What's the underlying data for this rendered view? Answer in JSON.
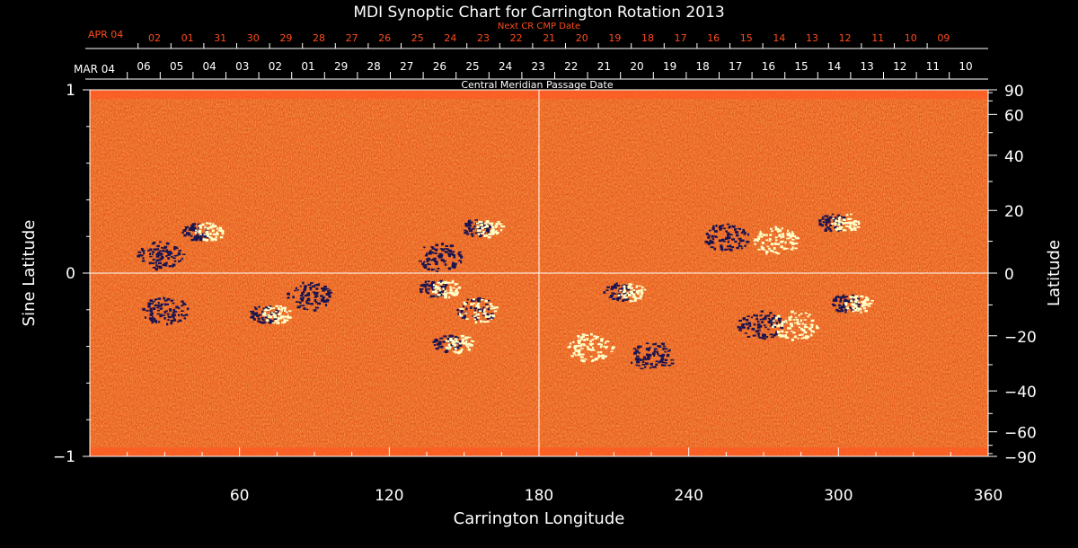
{
  "chart_data": {
    "type": "heatmap",
    "title": "MDI Synoptic Chart for Carrington Rotation 2013",
    "xlabel": "Carrington Longitude",
    "ylabel_left": "Sine Latitude",
    "ylabel_right": "Latitude",
    "xlim": [
      0,
      360
    ],
    "ylim": [
      -1,
      1
    ],
    "x_ticks": [
      60,
      120,
      180,
      240,
      300,
      360
    ],
    "x_tick_labels": [
      "60",
      "120",
      "180",
      "240",
      "300",
      "360"
    ],
    "y_left_ticks": [
      1,
      0,
      -1
    ],
    "y_left_tick_labels": [
      "1",
      "0",
      "−1"
    ],
    "y_right_ticks": [
      90,
      60,
      40,
      20,
      0,
      -20,
      -40,
      -60,
      -90
    ],
    "y_right_tick_labels": [
      "90",
      "60",
      "40",
      "20",
      "0",
      "−20",
      "−40",
      "−60",
      "−90"
    ],
    "cmp_axis": {
      "label": "Central Meridian Passage Date",
      "month_label": "MAR 04",
      "dates": [
        "06",
        "05",
        "04",
        "03",
        "02",
        "01",
        "29",
        "28",
        "27",
        "26",
        "25",
        "24",
        "23",
        "22",
        "21",
        "20",
        "19",
        "18",
        "17",
        "16",
        "15",
        "14",
        "13",
        "12",
        "11",
        "10"
      ]
    },
    "next_cmp_axis": {
      "label": "Next CR CMP Date",
      "month_label": "APR 04",
      "dates": [
        "02",
        "01",
        "31",
        "30",
        "29",
        "28",
        "27",
        "26",
        "25",
        "24",
        "23",
        "22",
        "21",
        "20",
        "19",
        "18",
        "17",
        "16",
        "15",
        "14",
        "13",
        "12",
        "11",
        "10",
        "09"
      ]
    },
    "crosshair": {
      "x": 180,
      "y": 0
    },
    "active_regions": [
      {
        "lon": 45,
        "sinlat": 0.23,
        "polarity": "bipolar"
      },
      {
        "lon": 28,
        "sinlat": 0.1,
        "polarity": "negative"
      },
      {
        "lon": 157,
        "sinlat": 0.25,
        "polarity": "bipolar"
      },
      {
        "lon": 140,
        "sinlat": 0.09,
        "polarity": "negative"
      },
      {
        "lon": 140,
        "sinlat": -0.08,
        "polarity": "bipolar"
      },
      {
        "lon": 155,
        "sinlat": -0.2,
        "polarity": "mixed"
      },
      {
        "lon": 145,
        "sinlat": -0.38,
        "polarity": "bipolar"
      },
      {
        "lon": 72,
        "sinlat": -0.22,
        "polarity": "bipolar"
      },
      {
        "lon": 88,
        "sinlat": -0.12,
        "polarity": "negative"
      },
      {
        "lon": 30,
        "sinlat": -0.2,
        "polarity": "negative"
      },
      {
        "lon": 214,
        "sinlat": -0.1,
        "polarity": "bipolar"
      },
      {
        "lon": 255,
        "sinlat": 0.2,
        "polarity": "negative"
      },
      {
        "lon": 275,
        "sinlat": 0.18,
        "polarity": "positive"
      },
      {
        "lon": 300,
        "sinlat": 0.28,
        "polarity": "bipolar"
      },
      {
        "lon": 268,
        "sinlat": -0.28,
        "polarity": "negative"
      },
      {
        "lon": 282,
        "sinlat": -0.28,
        "polarity": "positive"
      },
      {
        "lon": 305,
        "sinlat": -0.16,
        "polarity": "bipolar"
      },
      {
        "lon": 225,
        "sinlat": -0.45,
        "polarity": "negative"
      },
      {
        "lon": 200,
        "sinlat": -0.4,
        "polarity": "positive"
      }
    ],
    "colors": {
      "background": "#000000",
      "field_base": "#e8421a",
      "positive": "#ffffc8",
      "negative": "#1a1450",
      "axis": "#ffffff",
      "cmp_next": "#ff4a1a",
      "crosshair": "#ffffff"
    }
  }
}
